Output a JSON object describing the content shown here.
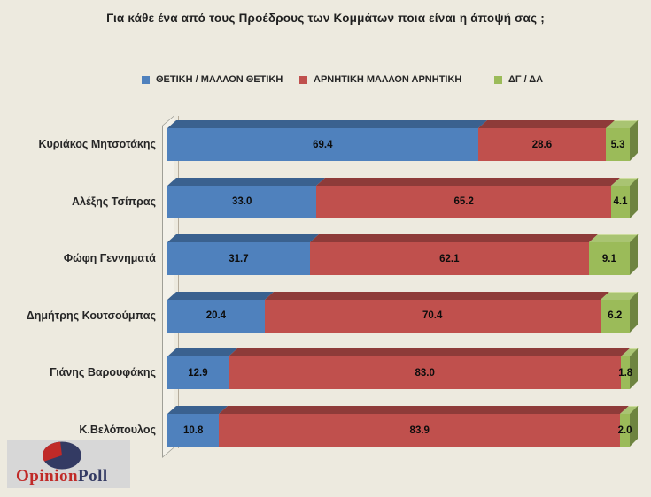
{
  "title": {
    "text": "Για κάθε ένα από τους Προέδρους των Κομμάτων ποια είναι η άποψή σας ;"
  },
  "legend": {
    "items": [
      {
        "label": "ΘΕΤΙΚΗ / ΜΑΛΛΟΝ ΘΕΤΙΚΗ",
        "color": "#4F81BD"
      },
      {
        "label": "ΑΡΝΗΤΙΚΗ ΜΑΛΛΟΝ ΑΡΝΗΤΙΚΗ",
        "color": "#C0504D"
      },
      {
        "label": "ΔΓ / ΔΑ",
        "color": "#9BBB59"
      }
    ]
  },
  "chart_data": {
    "type": "bar",
    "orientation": "horizontal",
    "stacked": "percent",
    "title": "Για κάθε ένα από τους Προέδρους των Κομμάτων ποια είναι η άποψή σας ;",
    "legend_position": "top",
    "categories": [
      "Κυριάκος Μητσοτάκης",
      "Αλέξης Τσίπρας",
      "Φώφη Γεννηματά",
      "Δημήτρης Κουτσούμπας",
      "Γιάνης Βαρουφάκης",
      "Κ.Βελόπουλος"
    ],
    "series": [
      {
        "name": "ΘΕΤΙΚΗ / ΜΑΛΛΟΝ ΘΕΤΙΚΗ",
        "color": "#4F81BD",
        "color_top": "#3A618F",
        "color_side": "#2F4F75",
        "values": [
          69.4,
          33.0,
          31.7,
          20.4,
          12.9,
          10.8
        ],
        "value_labels": [
          "69.4",
          "33.0",
          "31.7",
          "20.4",
          "12.9",
          "10.8"
        ]
      },
      {
        "name": "ΑΡΝΗΤΙΚΗ ΜΑΛΛΟΝ ΑΡΝΗΤΙΚΗ",
        "color": "#C0504D",
        "color_top": "#8E3B39",
        "color_side": "#7A312F",
        "values": [
          28.6,
          65.2,
          62.1,
          70.4,
          83.0,
          83.9
        ],
        "value_labels": [
          "28.6",
          "65.2",
          "62.1",
          "70.4",
          "83.0",
          "83.9"
        ]
      },
      {
        "name": "ΔΓ / ΔΑ",
        "color": "#9BBB59",
        "color_top": "#A9C472",
        "color_side": "#6E8440",
        "values": [
          5.3,
          4.1,
          9.1,
          6.2,
          1.8,
          2.0
        ],
        "value_labels": [
          "5.3",
          "4.1",
          "9.1",
          "6.2",
          "1.8",
          "2.0"
        ]
      }
    ]
  },
  "logo": {
    "text_primary": "Opinion",
    "text_secondary": "Poll",
    "color_primary": "#C02A28",
    "color_secondary": "#333A63",
    "pie_icon_colors": {
      "body": "#333A63",
      "slice": "#C02A28"
    }
  },
  "colors": {
    "background": "#EDEADF",
    "wall_fill": "#F3F1E9",
    "wall_border": "#9f9f97"
  }
}
